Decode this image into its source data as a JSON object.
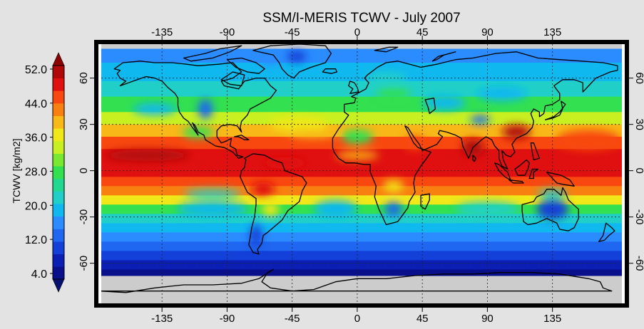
{
  "title": "SSM/I-MERIS TCWV - July 2007",
  "colorbar": {
    "label": "TCWV [kg/m2]",
    "ticks": [
      "4.0",
      "12.0",
      "20.0",
      "28.0",
      "36.0",
      "44.0",
      "52.0"
    ],
    "colors": [
      "#0a0f8c",
      "#0b1fb5",
      "#1240d8",
      "#1f66f0",
      "#2a8cff",
      "#10b8f0",
      "#20d0c8",
      "#20d890",
      "#32e050",
      "#7ae830",
      "#c8f020",
      "#f0e818",
      "#f8b818",
      "#f88010",
      "#f84810",
      "#e01010",
      "#b00808"
    ],
    "under_color": "#061070",
    "over_color": "#8c0000"
  },
  "map": {
    "lon_ticks": [
      "-135",
      "-90",
      "-45",
      "0",
      "45",
      "90",
      "135"
    ],
    "lat_ticks_left": [
      "60",
      "30",
      "0",
      "-30",
      "-60"
    ],
    "lat_ticks_right": [
      "60",
      "30",
      "0",
      "-30",
      "-60"
    ],
    "no_data_color": "#cccccc",
    "coast_color": "#000000",
    "grid": "dotted"
  }
}
